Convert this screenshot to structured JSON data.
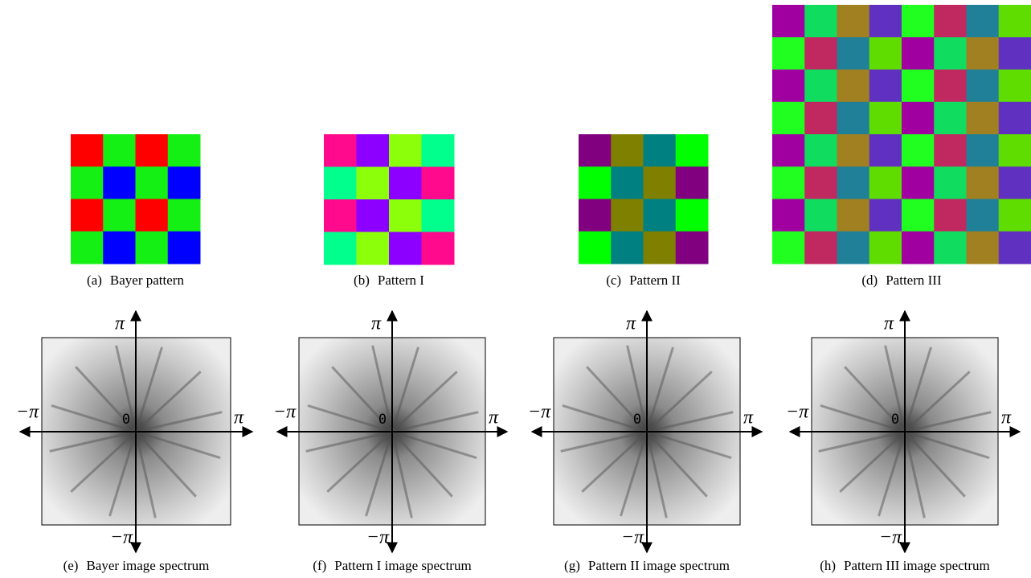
{
  "patterns": [
    {
      "label": "(a)",
      "caption": "Bayer pattern"
    },
    {
      "label": "(b)",
      "caption": "Pattern I"
    },
    {
      "label": "(c)",
      "caption": "Pattern II"
    },
    {
      "label": "(d)",
      "caption": "Pattern III"
    }
  ],
  "spectra": [
    {
      "label": "(e)",
      "caption": "Bayer image spectrum",
      "top": "π",
      "bottom": "−π",
      "left": "−π",
      "right": "π",
      "origin": "0"
    },
    {
      "label": "(f)",
      "caption": "Pattern I image spectrum",
      "top": "π",
      "bottom": "−π",
      "left": "−π",
      "right": "π",
      "origin": "0"
    },
    {
      "label": "(g)",
      "caption": "Pattern II image spectrum",
      "top": "π",
      "bottom": "−π",
      "left": "−π",
      "right": "π",
      "origin": "0"
    },
    {
      "label": "(h)",
      "caption": "Pattern III image spectrum",
      "top": "π",
      "bottom": "−π",
      "left": "−π",
      "right": "π",
      "origin": "0"
    }
  ]
}
